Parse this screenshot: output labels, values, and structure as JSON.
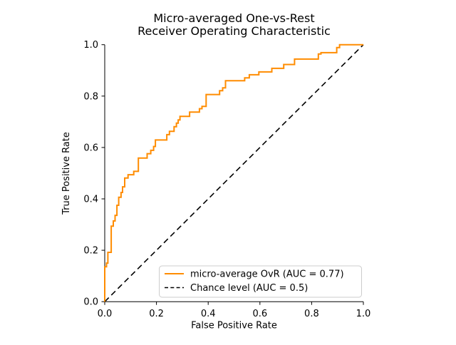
{
  "chart_data": {
    "type": "line",
    "title": "Micro-averaged One-vs-Rest Receiver Operating Characteristic",
    "title_lines": [
      "Micro-averaged One-vs-Rest",
      "Receiver Operating Characteristic"
    ],
    "xlabel": "False Positive Rate",
    "ylabel": "True Positive Rate",
    "xlim": [
      0.0,
      1.0
    ],
    "ylim": [
      0.0,
      1.0
    ],
    "x_ticks": [
      0.0,
      0.2,
      0.4,
      0.6,
      0.8,
      1.0
    ],
    "x_tick_labels": [
      "0.0",
      "0.2",
      "0.4",
      "0.6",
      "0.8",
      "1.0"
    ],
    "y_ticks": [
      0.0,
      0.2,
      0.4,
      0.6,
      0.8,
      1.0
    ],
    "y_tick_labels": [
      "0.0",
      "0.2",
      "0.4",
      "0.6",
      "0.8",
      "1.0"
    ],
    "grid": false,
    "legend_position": "lower right",
    "series": [
      {
        "name": "micro-average OvR (AUC = 0.77)",
        "auc": 0.77,
        "color": "#ff8c00",
        "style": "solid",
        "points": [
          [
            0.0,
            0.0
          ],
          [
            0.0,
            0.136
          ],
          [
            0.007,
            0.136
          ],
          [
            0.007,
            0.15
          ],
          [
            0.012,
            0.15
          ],
          [
            0.012,
            0.192
          ],
          [
            0.025,
            0.192
          ],
          [
            0.025,
            0.294
          ],
          [
            0.033,
            0.294
          ],
          [
            0.033,
            0.314
          ],
          [
            0.04,
            0.314
          ],
          [
            0.04,
            0.336
          ],
          [
            0.047,
            0.336
          ],
          [
            0.047,
            0.375
          ],
          [
            0.054,
            0.375
          ],
          [
            0.054,
            0.406
          ],
          [
            0.063,
            0.406
          ],
          [
            0.063,
            0.425
          ],
          [
            0.069,
            0.425
          ],
          [
            0.069,
            0.447
          ],
          [
            0.077,
            0.447
          ],
          [
            0.077,
            0.481
          ],
          [
            0.09,
            0.481
          ],
          [
            0.09,
            0.494
          ],
          [
            0.112,
            0.494
          ],
          [
            0.112,
            0.507
          ],
          [
            0.13,
            0.507
          ],
          [
            0.13,
            0.559
          ],
          [
            0.164,
            0.559
          ],
          [
            0.164,
            0.576
          ],
          [
            0.178,
            0.576
          ],
          [
            0.178,
            0.589
          ],
          [
            0.189,
            0.589
          ],
          [
            0.189,
            0.604
          ],
          [
            0.196,
            0.604
          ],
          [
            0.196,
            0.629
          ],
          [
            0.24,
            0.629
          ],
          [
            0.24,
            0.65
          ],
          [
            0.25,
            0.65
          ],
          [
            0.25,
            0.663
          ],
          [
            0.268,
            0.663
          ],
          [
            0.268,
            0.681
          ],
          [
            0.277,
            0.681
          ],
          [
            0.277,
            0.695
          ],
          [
            0.284,
            0.695
          ],
          [
            0.284,
            0.707
          ],
          [
            0.291,
            0.707
          ],
          [
            0.291,
            0.721
          ],
          [
            0.328,
            0.721
          ],
          [
            0.328,
            0.738
          ],
          [
            0.366,
            0.738
          ],
          [
            0.366,
            0.751
          ],
          [
            0.376,
            0.751
          ],
          [
            0.376,
            0.76
          ],
          [
            0.392,
            0.76
          ],
          [
            0.392,
            0.806
          ],
          [
            0.444,
            0.806
          ],
          [
            0.444,
            0.821
          ],
          [
            0.456,
            0.821
          ],
          [
            0.456,
            0.832
          ],
          [
            0.467,
            0.832
          ],
          [
            0.467,
            0.86
          ],
          [
            0.541,
            0.86
          ],
          [
            0.541,
            0.871
          ],
          [
            0.559,
            0.871
          ],
          [
            0.559,
            0.883
          ],
          [
            0.596,
            0.883
          ],
          [
            0.596,
            0.894
          ],
          [
            0.646,
            0.894
          ],
          [
            0.646,
            0.908
          ],
          [
            0.692,
            0.908
          ],
          [
            0.692,
            0.923
          ],
          [
            0.734,
            0.923
          ],
          [
            0.734,
            0.944
          ],
          [
            0.826,
            0.944
          ],
          [
            0.826,
            0.964
          ],
          [
            0.836,
            0.964
          ],
          [
            0.836,
            0.969
          ],
          [
            0.897,
            0.969
          ],
          [
            0.897,
            0.989
          ],
          [
            0.908,
            0.989
          ],
          [
            0.908,
            1.0
          ],
          [
            1.0,
            1.0
          ]
        ]
      },
      {
        "name": "Chance level (AUC = 0.5)",
        "auc": 0.5,
        "color": "#000000",
        "style": "dashed",
        "points": [
          [
            0.0,
            0.0
          ],
          [
            1.0,
            1.0
          ]
        ]
      }
    ]
  },
  "legend": {
    "border_color": "#cccccc",
    "background_color": "#ffffff"
  }
}
